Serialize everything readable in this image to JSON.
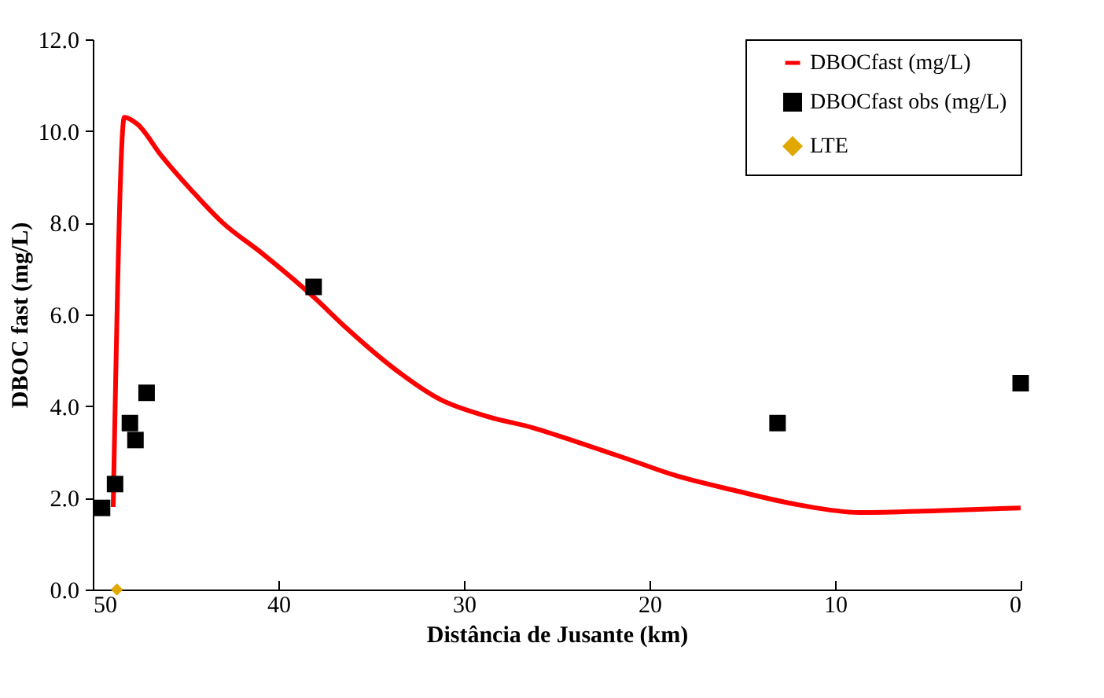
{
  "chart_data": {
    "type": "line",
    "xlabel": "Distância de Jusante (km)",
    "ylabel": "DBOC fast (mg/L)",
    "xlim": [
      50,
      0
    ],
    "xticks": [
      50,
      40,
      30,
      20,
      10,
      0
    ],
    "ylim": [
      0,
      12
    ],
    "yticks": [
      {
        "value": 0,
        "label": "0.0"
      },
      {
        "value": 2,
        "label": "2.0"
      },
      {
        "value": 4,
        "label": "4.0"
      },
      {
        "value": 6,
        "label": "6.0"
      },
      {
        "value": 8,
        "label": "8.0"
      },
      {
        "value": 10,
        "label": "10.0"
      },
      {
        "value": 12,
        "label": "12.0"
      }
    ],
    "grid": false,
    "legend": "top right",
    "series": [
      {
        "name": "DBOCfast (mg/L)",
        "type": "line",
        "color": "#ff0000",
        "marker": "none",
        "line_style": "solid",
        "x": [
          48.9,
          48.3,
          47.6,
          46.3,
          44.6,
          43.0,
          40.9,
          38.1,
          36.3,
          33.8,
          31.3,
          28.7,
          26.3,
          23.7,
          21.2,
          18.7,
          15.4,
          12.0,
          8.7,
          4.5,
          0
        ],
        "values": [
          1.8,
          10.3,
          10.15,
          9.46,
          8.67,
          8.0,
          7.34,
          6.38,
          5.69,
          4.83,
          4.15,
          3.77,
          3.53,
          3.19,
          2.85,
          2.5,
          2.16,
          1.85,
          1.68,
          1.72,
          1.78
        ]
      },
      {
        "name": "DBOCfast obs (mg/L)",
        "type": "scatter",
        "color": "#000000",
        "marker": "square",
        "x": [
          49.5,
          48.8,
          48.0,
          47.7,
          47.1,
          38.1,
          13.1,
          0
        ],
        "values": [
          1.78,
          2.3,
          3.63,
          3.26,
          4.29,
          6.6,
          3.63,
          4.5
        ]
      },
      {
        "name": "LTE",
        "type": "scatter",
        "color": "#e0a800",
        "marker": "diamond",
        "x": [
          48.7
        ],
        "values": [
          0
        ]
      }
    ]
  }
}
